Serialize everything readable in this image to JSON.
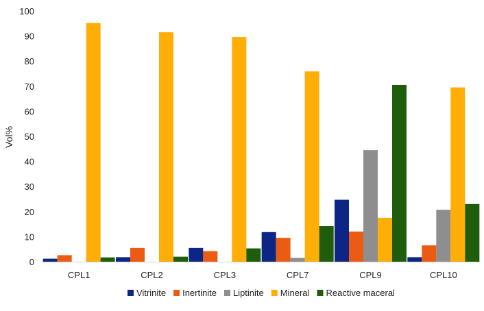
{
  "chart_data": {
    "type": "bar",
    "title": "",
    "xlabel": "",
    "ylabel": "Vol%",
    "ylim": [
      0,
      100
    ],
    "yticks": [
      0,
      10,
      20,
      30,
      40,
      50,
      60,
      70,
      80,
      90,
      100
    ],
    "grid": false,
    "legend_position": "bottom",
    "categories": [
      "CPL1",
      "CPL2",
      "CPL3",
      "CPL7",
      "CPL9",
      "CPL10"
    ],
    "series": [
      {
        "name": "Vitrinite",
        "color": "#0d2585",
        "values": [
          1.2,
          1.8,
          5.5,
          11.8,
          24.7,
          1.8
        ]
      },
      {
        "name": "Inertinite",
        "color": "#ec5b14",
        "values": [
          2.6,
          5.5,
          4.2,
          9.5,
          12.0,
          6.5
        ]
      },
      {
        "name": "Liptinite",
        "color": "#8e8e8e",
        "values": [
          0,
          0,
          0,
          1.5,
          44.5,
          20.7
        ]
      },
      {
        "name": "Mineral",
        "color": "#ffad07",
        "values": [
          95.2,
          91.5,
          89.6,
          75.9,
          17.5,
          69.5
        ]
      },
      {
        "name": "Reactive maceral",
        "color": "#1d5d0c",
        "values": [
          1.7,
          2.0,
          5.3,
          14.2,
          70.5,
          23.0
        ]
      }
    ]
  }
}
